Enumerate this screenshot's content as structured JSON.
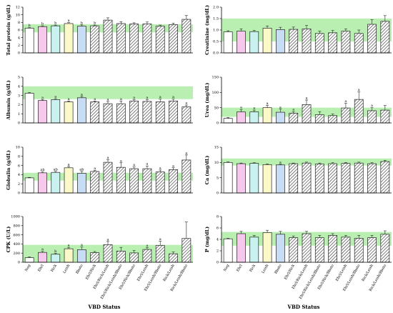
{
  "figure": {
    "categories": [
      "Neg",
      "Ehrl",
      "Rick",
      "Leish",
      "Bbsto",
      "Ehrl/Rick",
      "Ehrl/Rick/Leish",
      "Ehrl/Rick/Leish/Bbsto",
      "Ehrl/Rick/Bbsto",
      "Ehrl/Leish",
      "Ehrl/Leish/Bbsto",
      "Rick/Leish",
      "Rick/Leish/Bbsto"
    ],
    "xlabel_left": "VBD  Status",
    "xlabel_right": "VBD  Status",
    "bar_styles": [
      "white",
      "pink",
      "lightcyan",
      "lightyellow",
      "lightblue",
      "hatch",
      "hatch",
      "hatch",
      "hatch",
      "hatch",
      "hatch",
      "hatch",
      "hatch"
    ],
    "colors": {
      "white": "#ffffff",
      "pink": "#f6c8ec",
      "lightcyan": "#c9f1ef",
      "lightyellow": "#fbf9c8",
      "lightblue": "#c7dcf5",
      "band": "#b9f0b2",
      "hatch": "#555555"
    }
  },
  "chart_data": [
    {
      "type": "bar",
      "ylabel": "Total protein (g/dL)",
      "ylim": [
        0,
        12
      ],
      "yticks": [
        0,
        2,
        4,
        6,
        8,
        10,
        12
      ],
      "reference_range": [
        5.4,
        7.5
      ],
      "values": [
        6.5,
        6.9,
        7.1,
        7.7,
        7.0,
        7.1,
        8.6,
        7.7,
        7.6,
        7.6,
        7.0,
        7.4,
        8.8
      ],
      "errors": [
        0.15,
        0.2,
        0.2,
        0.25,
        0.35,
        0.2,
        0.6,
        0.5,
        0.3,
        0.5,
        0.3,
        0.4,
        1.0
      ],
      "significance": [
        "b",
        "b",
        "b",
        "a",
        "b",
        "b",
        "",
        "",
        "",
        "",
        "",
        "",
        ""
      ]
    },
    {
      "type": "bar",
      "ylabel": "Creatinine (mg/dL)",
      "ylim": [
        0,
        2.0
      ],
      "yticks": [
        0.0,
        0.5,
        1.0,
        1.5,
        2.0
      ],
      "reference_range": [
        0.5,
        1.5
      ],
      "values": [
        0.92,
        0.95,
        0.93,
        1.08,
        1.02,
        1.03,
        1.05,
        0.85,
        0.88,
        0.95,
        0.85,
        1.25,
        1.38
      ],
      "errors": [
        0.05,
        0.1,
        0.05,
        0.1,
        0.1,
        0.1,
        0.15,
        0.1,
        0.1,
        0.1,
        0.15,
        0.2,
        0.25
      ],
      "significance": [
        "",
        "",
        "",
        "",
        "",
        "",
        "",
        "",
        "",
        "",
        "",
        "",
        ""
      ]
    },
    {
      "type": "bar",
      "ylabel": "Albumin (g/dL)",
      "ylim": [
        0,
        5
      ],
      "yticks": [
        0,
        1,
        2,
        3,
        4,
        5
      ],
      "reference_range": [
        2.6,
        4.0
      ],
      "values": [
        3.25,
        2.45,
        2.55,
        2.3,
        2.75,
        2.3,
        2.1,
        2.1,
        2.4,
        2.35,
        2.3,
        2.4,
        1.75
      ],
      "errors": [
        0.08,
        0.1,
        0.1,
        0.1,
        0.15,
        0.1,
        0.25,
        0.3,
        0.15,
        0.2,
        0.3,
        0.2,
        0.2
      ],
      "significance": [
        "",
        "a",
        "a",
        "a",
        "a",
        "a",
        "a",
        "a",
        "a",
        "a",
        "a",
        "a",
        "a"
      ]
    },
    {
      "type": "bar",
      "ylabel": "Urea (mg/dL)",
      "ylim": [
        0,
        150
      ],
      "yticks": [
        0,
        50,
        100,
        150
      ],
      "reference_range": [
        20,
        50
      ],
      "values": [
        15,
        36,
        36,
        50,
        35,
        32,
        60,
        27,
        24,
        49,
        77,
        40,
        42
      ],
      "errors": [
        3,
        8,
        6,
        8,
        10,
        5,
        15,
        10,
        5,
        15,
        25,
        10,
        15
      ],
      "significance": [
        "",
        "a",
        "a",
        "a",
        "a",
        "a",
        "a",
        "",
        "",
        "a",
        "a",
        "a",
        ""
      ]
    },
    {
      "type": "bar",
      "ylabel": "Globulin (g/dL)",
      "ylim": [
        0,
        10
      ],
      "yticks": [
        0,
        2,
        4,
        6,
        8,
        10
      ],
      "reference_range": [
        2.7,
        4.4
      ],
      "values": [
        3.3,
        4.4,
        4.5,
        5.5,
        4.3,
        4.7,
        6.7,
        5.6,
        5.3,
        5.3,
        4.6,
        5.1,
        7.2
      ],
      "errors": [
        0.1,
        0.2,
        0.2,
        0.3,
        0.4,
        0.2,
        0.6,
        1.0,
        0.4,
        0.6,
        0.4,
        0.4,
        1.1
      ],
      "significance": [
        "",
        "ab",
        "ab",
        "a",
        "ab",
        "a",
        "a",
        "a",
        "a",
        "a",
        "a",
        "a",
        "a"
      ]
    },
    {
      "type": "bar",
      "ylabel": "Ca (mg/dL)",
      "ylim": [
        0,
        15
      ],
      "yticks": [
        0,
        5,
        10,
        15
      ],
      "reference_range": [
        9,
        11.3
      ],
      "values": [
        10.0,
        9.6,
        9.7,
        9.3,
        9.2,
        9.6,
        9.8,
        9.5,
        9.6,
        9.7,
        9.8,
        9.6,
        10.3
      ],
      "errors": [
        0.2,
        0.2,
        0.2,
        0.2,
        0.2,
        0.2,
        0.3,
        0.3,
        0.3,
        0.3,
        0.3,
        0.3,
        0.4
      ],
      "significance": [
        "",
        "",
        "",
        "",
        "a",
        "",
        "",
        "",
        "",
        "",
        "",
        "",
        ""
      ]
    },
    {
      "type": "bar",
      "ylabel": "CPK (U/L)",
      "ylim": [
        0,
        1000
      ],
      "yticks": [
        0,
        200,
        400,
        600,
        800,
        1000
      ],
      "reference_range": [
        0,
        380
      ],
      "values": [
        100,
        215,
        175,
        295,
        275,
        210,
        385,
        245,
        205,
        280,
        370,
        185,
        520
      ],
      "errors": [
        15,
        25,
        20,
        30,
        60,
        25,
        70,
        80,
        50,
        40,
        90,
        40,
        360
      ],
      "significance": [
        "",
        "a",
        "b",
        "a",
        "a",
        "",
        "a",
        "",
        "",
        "a",
        "a",
        "",
        ""
      ]
    },
    {
      "type": "bar",
      "ylabel": "P (mg/dL)",
      "ylim": [
        0,
        8
      ],
      "yticks": [
        0,
        2,
        4,
        6,
        8
      ],
      "reference_range": [
        2.9,
        5.3
      ],
      "values": [
        4.1,
        5.0,
        4.4,
        5.2,
        4.9,
        4.3,
        5.0,
        4.3,
        4.7,
        4.4,
        4.2,
        4.3,
        4.9
      ],
      "errors": [
        0.1,
        0.4,
        0.3,
        0.4,
        0.5,
        0.3,
        0.4,
        0.4,
        0.3,
        0.3,
        0.5,
        0.4,
        0.6
      ],
      "significance": [
        "",
        "",
        "",
        "",
        "",
        "",
        "",
        "",
        "",
        "",
        "",
        "",
        ""
      ]
    }
  ]
}
